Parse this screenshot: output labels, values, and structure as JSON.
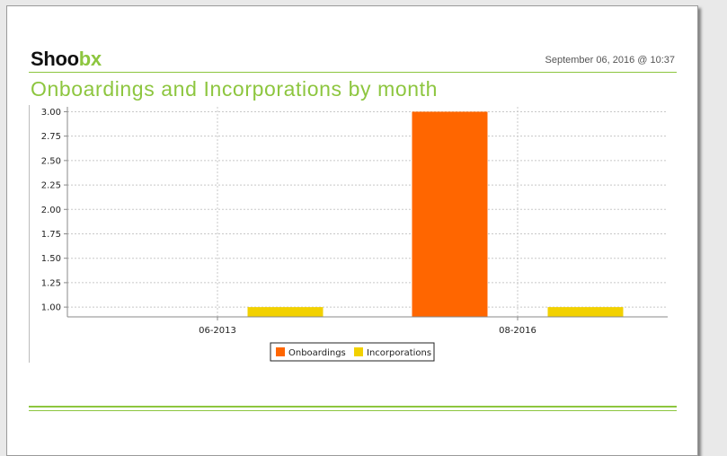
{
  "header": {
    "logo_text": "Shoobx",
    "logo_main": "Shoo",
    "logo_accent": "bx",
    "timestamp": "September 06, 2016 @ 10:37",
    "title": "Onboardings and Incorporations by month"
  },
  "colors": {
    "accent": "#8dc63f",
    "onboardings": "#ff6600",
    "incorporations": "#f2d100"
  },
  "chart_data": {
    "type": "bar",
    "title": "Onboardings and Incorporations by month",
    "xlabel": "",
    "ylabel": "",
    "categories": [
      "06-2013",
      "08-2016"
    ],
    "series": [
      {
        "name": "Onboardings",
        "values": [
          null,
          3.0
        ]
      },
      {
        "name": "Incorporations",
        "values": [
          1.0,
          1.0
        ]
      }
    ],
    "ylim": [
      0.9,
      3.05
    ],
    "yticks": [
      "1.00",
      "1.25",
      "1.50",
      "1.75",
      "2.00",
      "2.25",
      "2.50",
      "2.75",
      "3.00"
    ],
    "grid": true,
    "legend": "bottom-center"
  }
}
